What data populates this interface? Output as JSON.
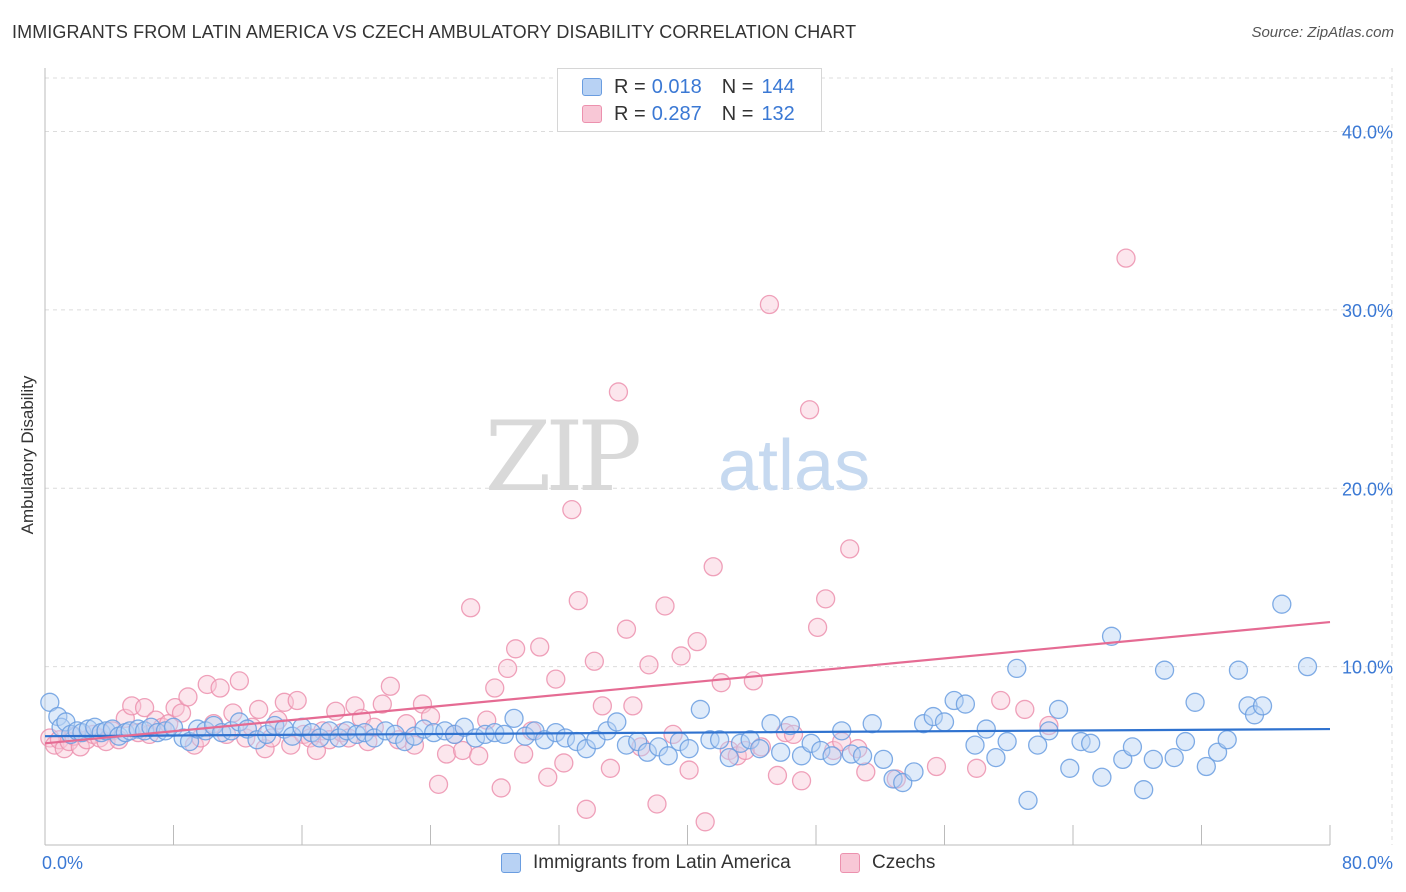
{
  "title": "IMMIGRANTS FROM LATIN AMERICA VS CZECH AMBULATORY DISABILITY CORRELATION CHART",
  "source": "Source: ZipAtlas.com",
  "watermark": {
    "zip": "ZIP",
    "atlas": "atlas"
  },
  "legend": {
    "r_label": "R =",
    "n_label": "N =",
    "items": [
      {
        "r": "0.018",
        "n": "144",
        "name": "Immigrants from Latin America"
      },
      {
        "r": "0.287",
        "n": "132",
        "name": "Czechs"
      }
    ]
  },
  "colors": {
    "blue": "#6a9de0",
    "blue_fill": "#b8d2f4",
    "blue_line": "#2f72cf",
    "pink": "#ec91ae",
    "pink_fill": "#f8c7d6",
    "pink_line": "#e56b93",
    "tick_text": "#3a78d4",
    "grid": "#dcdcdc"
  },
  "chart_data": {
    "type": "scatter",
    "title": "IMMIGRANTS FROM LATIN AMERICA VS CZECH AMBULATORY DISABILITY CORRELATION CHART",
    "xlabel": "",
    "ylabel": "Ambulatory Disability",
    "xlim": [
      0,
      80
    ],
    "ylim": [
      0,
      43
    ],
    "x_tick_labels": [
      "0.0%",
      "80.0%"
    ],
    "y_ticks": [
      10,
      20,
      30,
      40
    ],
    "y_tick_labels": [
      "10.0%",
      "20.0%",
      "30.0%",
      "40.0%"
    ],
    "grid": true,
    "legend_position": "top-center",
    "series": [
      {
        "name": "Immigrants from Latin America",
        "r": 0.018,
        "n": 144,
        "trend": {
          "x": [
            0,
            80
          ],
          "y": [
            6.1,
            6.5
          ]
        },
        "points": [
          [
            0.3,
            8.0
          ],
          [
            0.8,
            7.2
          ],
          [
            1.0,
            6.6
          ],
          [
            1.3,
            6.9
          ],
          [
            1.6,
            6.2
          ],
          [
            2.0,
            6.4
          ],
          [
            2.3,
            6.3
          ],
          [
            2.7,
            6.5
          ],
          [
            3.1,
            6.6
          ],
          [
            3.5,
            6.3
          ],
          [
            3.8,
            6.4
          ],
          [
            4.2,
            6.5
          ],
          [
            4.6,
            6.1
          ],
          [
            5.0,
            6.3
          ],
          [
            5.3,
            6.4
          ],
          [
            5.8,
            6.5
          ],
          [
            6.2,
            6.4
          ],
          [
            6.6,
            6.6
          ],
          [
            7.0,
            6.3
          ],
          [
            7.5,
            6.4
          ],
          [
            8.0,
            6.6
          ],
          [
            8.6,
            6.0
          ],
          [
            9.0,
            5.8
          ],
          [
            9.5,
            6.5
          ],
          [
            10.0,
            6.4
          ],
          [
            10.5,
            6.7
          ],
          [
            11.0,
            6.3
          ],
          [
            11.6,
            6.4
          ],
          [
            12.1,
            6.9
          ],
          [
            12.6,
            6.5
          ],
          [
            13.2,
            5.9
          ],
          [
            13.8,
            6.2
          ],
          [
            14.3,
            6.7
          ],
          [
            14.9,
            6.5
          ],
          [
            15.4,
            6.1
          ],
          [
            16.0,
            6.6
          ],
          [
            16.6,
            6.3
          ],
          [
            17.1,
            6.0
          ],
          [
            17.7,
            6.4
          ],
          [
            18.3,
            6.0
          ],
          [
            18.8,
            6.4
          ],
          [
            19.4,
            6.2
          ],
          [
            19.9,
            6.3
          ],
          [
            20.5,
            6.0
          ],
          [
            21.2,
            6.4
          ],
          [
            21.8,
            6.2
          ],
          [
            22.4,
            5.8
          ],
          [
            23.0,
            6.1
          ],
          [
            23.6,
            6.5
          ],
          [
            24.2,
            6.3
          ],
          [
            24.9,
            6.4
          ],
          [
            25.5,
            6.2
          ],
          [
            26.1,
            6.6
          ],
          [
            26.8,
            6.0
          ],
          [
            27.4,
            6.2
          ],
          [
            28.0,
            6.3
          ],
          [
            28.6,
            6.2
          ],
          [
            29.2,
            7.1
          ],
          [
            29.9,
            6.1
          ],
          [
            30.5,
            6.4
          ],
          [
            31.1,
            5.9
          ],
          [
            31.8,
            6.3
          ],
          [
            32.4,
            6.0
          ],
          [
            33.1,
            5.8
          ],
          [
            33.7,
            5.4
          ],
          [
            34.3,
            5.9
          ],
          [
            35.0,
            6.4
          ],
          [
            35.6,
            6.9
          ],
          [
            36.2,
            5.6
          ],
          [
            36.9,
            5.8
          ],
          [
            37.5,
            5.2
          ],
          [
            38.2,
            5.5
          ],
          [
            38.8,
            5.0
          ],
          [
            39.5,
            5.8
          ],
          [
            40.1,
            5.4
          ],
          [
            40.8,
            7.6
          ],
          [
            41.4,
            5.9
          ],
          [
            42.0,
            5.9
          ],
          [
            42.6,
            4.9
          ],
          [
            43.3,
            5.7
          ],
          [
            43.9,
            5.9
          ],
          [
            44.5,
            5.4
          ],
          [
            45.2,
            6.8
          ],
          [
            45.8,
            5.2
          ],
          [
            46.4,
            6.7
          ],
          [
            47.1,
            5.0
          ],
          [
            47.7,
            5.7
          ],
          [
            48.3,
            5.3
          ],
          [
            49.0,
            5.0
          ],
          [
            49.6,
            6.4
          ],
          [
            50.2,
            5.1
          ],
          [
            50.9,
            5.0
          ],
          [
            51.5,
            6.8
          ],
          [
            52.2,
            4.8
          ],
          [
            52.8,
            3.7
          ],
          [
            53.4,
            3.5
          ],
          [
            54.1,
            4.1
          ],
          [
            54.7,
            6.8
          ],
          [
            55.3,
            7.2
          ],
          [
            56.0,
            6.9
          ],
          [
            56.6,
            8.1
          ],
          [
            57.3,
            7.9
          ],
          [
            57.9,
            5.6
          ],
          [
            58.6,
            6.5
          ],
          [
            59.2,
            4.9
          ],
          [
            59.9,
            5.8
          ],
          [
            60.5,
            9.9
          ],
          [
            61.2,
            2.5
          ],
          [
            61.8,
            5.6
          ],
          [
            62.5,
            6.4
          ],
          [
            63.1,
            7.6
          ],
          [
            63.8,
            4.3
          ],
          [
            64.5,
            5.8
          ],
          [
            65.1,
            5.7
          ],
          [
            65.8,
            3.8
          ],
          [
            66.4,
            11.7
          ],
          [
            67.1,
            4.8
          ],
          [
            67.7,
            5.5
          ],
          [
            68.4,
            3.1
          ],
          [
            69.0,
            4.8
          ],
          [
            69.7,
            9.8
          ],
          [
            70.3,
            4.9
          ],
          [
            71.0,
            5.8
          ],
          [
            71.6,
            8.0
          ],
          [
            72.3,
            4.4
          ],
          [
            73.0,
            5.2
          ],
          [
            73.6,
            5.9
          ],
          [
            74.3,
            9.8
          ],
          [
            74.9,
            7.8
          ],
          [
            75.3,
            7.3
          ],
          [
            75.8,
            7.8
          ],
          [
            77.0,
            13.5
          ],
          [
            78.6,
            10.0
          ]
        ]
      },
      {
        "name": "Czechs",
        "r": 0.287,
        "n": 132,
        "trend": {
          "x": [
            0,
            80
          ],
          "y": [
            5.7,
            12.5
          ]
        },
        "points": [
          [
            0.3,
            6.0
          ],
          [
            0.6,
            5.6
          ],
          [
            0.9,
            5.9
          ],
          [
            1.2,
            5.4
          ],
          [
            1.5,
            5.8
          ],
          [
            1.8,
            6.1
          ],
          [
            2.2,
            5.5
          ],
          [
            2.6,
            5.9
          ],
          [
            3.0,
            6.2
          ],
          [
            3.4,
            6.0
          ],
          [
            3.8,
            5.8
          ],
          [
            4.2,
            6.4
          ],
          [
            4.6,
            5.9
          ],
          [
            5.0,
            7.1
          ],
          [
            5.4,
            7.8
          ],
          [
            5.8,
            6.3
          ],
          [
            6.2,
            7.7
          ],
          [
            6.5,
            6.2
          ],
          [
            6.9,
            7.0
          ],
          [
            7.3,
            6.6
          ],
          [
            7.7,
            6.8
          ],
          [
            8.1,
            7.7
          ],
          [
            8.5,
            7.4
          ],
          [
            8.9,
            8.3
          ],
          [
            9.3,
            5.6
          ],
          [
            9.7,
            6.0
          ],
          [
            10.1,
            9.0
          ],
          [
            10.5,
            6.8
          ],
          [
            10.9,
            8.8
          ],
          [
            11.3,
            6.2
          ],
          [
            11.7,
            7.4
          ],
          [
            12.1,
            9.2
          ],
          [
            12.5,
            6.0
          ],
          [
            12.9,
            6.6
          ],
          [
            13.3,
            7.6
          ],
          [
            13.7,
            5.4
          ],
          [
            14.1,
            6.0
          ],
          [
            14.5,
            7.0
          ],
          [
            14.9,
            8.0
          ],
          [
            15.3,
            5.6
          ],
          [
            15.7,
            8.1
          ],
          [
            16.1,
            6.2
          ],
          [
            16.5,
            6.0
          ],
          [
            16.9,
            5.3
          ],
          [
            17.3,
            6.4
          ],
          [
            17.7,
            5.9
          ],
          [
            18.1,
            7.5
          ],
          [
            18.5,
            6.3
          ],
          [
            18.9,
            6.0
          ],
          [
            19.3,
            7.8
          ],
          [
            19.7,
            7.1
          ],
          [
            20.1,
            5.8
          ],
          [
            20.5,
            6.6
          ],
          [
            21.0,
            7.9
          ],
          [
            21.5,
            8.9
          ],
          [
            22.0,
            5.9
          ],
          [
            22.5,
            6.8
          ],
          [
            23.0,
            5.6
          ],
          [
            23.5,
            7.9
          ],
          [
            24.0,
            7.2
          ],
          [
            24.5,
            3.4
          ],
          [
            25.0,
            5.1
          ],
          [
            25.5,
            6.2
          ],
          [
            26.0,
            5.3
          ],
          [
            26.5,
            13.3
          ],
          [
            27.0,
            5.0
          ],
          [
            27.5,
            7.0
          ],
          [
            28.0,
            8.8
          ],
          [
            28.4,
            3.2
          ],
          [
            28.8,
            9.9
          ],
          [
            29.3,
            11.0
          ],
          [
            29.8,
            5.1
          ],
          [
            30.3,
            6.4
          ],
          [
            30.8,
            11.1
          ],
          [
            31.3,
            3.8
          ],
          [
            31.8,
            9.3
          ],
          [
            32.3,
            4.6
          ],
          [
            32.8,
            18.8
          ],
          [
            33.2,
            13.7
          ],
          [
            33.7,
            2.0
          ],
          [
            34.2,
            10.3
          ],
          [
            34.7,
            7.8
          ],
          [
            35.2,
            4.3
          ],
          [
            35.7,
            25.4
          ],
          [
            36.2,
            12.1
          ],
          [
            36.6,
            7.8
          ],
          [
            37.1,
            5.5
          ],
          [
            37.6,
            10.1
          ],
          [
            38.1,
            2.3
          ],
          [
            38.6,
            13.4
          ],
          [
            39.1,
            6.2
          ],
          [
            39.6,
            10.6
          ],
          [
            40.1,
            4.2
          ],
          [
            40.6,
            11.4
          ],
          [
            41.1,
            1.3
          ],
          [
            41.6,
            15.6
          ],
          [
            42.1,
            9.1
          ],
          [
            42.6,
            5.3
          ],
          [
            43.1,
            5.0
          ],
          [
            43.6,
            5.3
          ],
          [
            44.1,
            9.2
          ],
          [
            44.6,
            5.5
          ],
          [
            45.1,
            30.3
          ],
          [
            45.6,
            3.9
          ],
          [
            46.1,
            6.3
          ],
          [
            46.6,
            6.2
          ],
          [
            47.1,
            3.6
          ],
          [
            47.6,
            24.4
          ],
          [
            48.1,
            12.2
          ],
          [
            48.6,
            13.8
          ],
          [
            49.1,
            5.3
          ],
          [
            49.6,
            5.8
          ],
          [
            50.1,
            16.6
          ],
          [
            50.6,
            5.4
          ],
          [
            51.1,
            4.1
          ],
          [
            53.0,
            3.7
          ],
          [
            55.5,
            4.4
          ],
          [
            58.0,
            4.3
          ],
          [
            59.5,
            8.1
          ],
          [
            61.0,
            7.6
          ],
          [
            62.5,
            6.7
          ],
          [
            67.3,
            32.9
          ]
        ]
      }
    ]
  }
}
